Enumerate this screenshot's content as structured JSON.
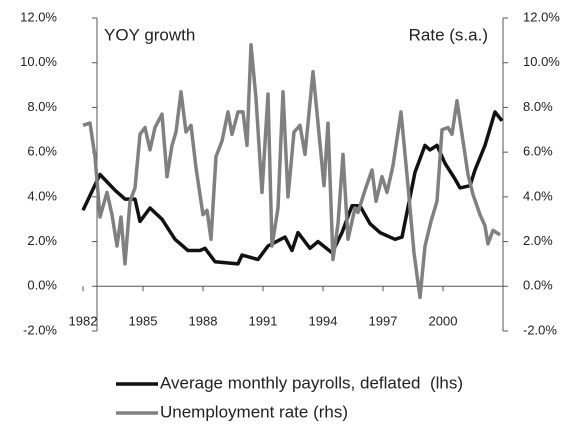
{
  "chart_data": {
    "type": "line",
    "annotations": [
      "YOY growth",
      "Rate (s.a.)"
    ],
    "xlim": [
      1982,
      2003
    ],
    "xticks": [
      1982,
      1985,
      1988,
      1991,
      1994,
      1997,
      2000
    ],
    "ylim": [
      -2,
      12
    ],
    "yticks": [
      {
        "value": -2,
        "label": "-2.0%"
      },
      {
        "value": 0,
        "label": "0.0%"
      },
      {
        "value": 2,
        "label": "2.0%"
      },
      {
        "value": 4,
        "label": "4.0%"
      },
      {
        "value": 6,
        "label": "6.0%"
      },
      {
        "value": 8,
        "label": "8.0%"
      },
      {
        "value": 10,
        "label": "10.0%"
      },
      {
        "value": 12,
        "label": "12.0%"
      }
    ],
    "y2lim": [
      -2,
      12
    ],
    "y2ticks": [
      {
        "value": -2,
        "label": "-2.0%"
      },
      {
        "value": 0,
        "label": "0.0%"
      },
      {
        "value": 2,
        "label": "2.0%"
      },
      {
        "value": 4,
        "label": "4.0%"
      },
      {
        "value": 6,
        "label": "6.0%"
      },
      {
        "value": 8,
        "label": "8.0%"
      },
      {
        "value": 10,
        "label": "10.0%"
      },
      {
        "value": 12,
        "label": "12.0%"
      }
    ],
    "series": [
      {
        "name": "Average monthly payrolls, deflated  (lhs)",
        "color": "#111111",
        "width": 3.5,
        "x": [
          1982.0,
          1982.85,
          1983.6,
          1984.1,
          1984.6,
          1984.85,
          1985.35,
          1985.95,
          1986.6,
          1987.25,
          1987.85,
          1988.1,
          1988.6,
          1989.75,
          1989.95,
          1990.75,
          1991.25,
          1992.1,
          1992.45,
          1992.75,
          1993.35,
          1993.75,
          1994.45,
          1994.95,
          1995.45,
          1995.85,
          1996.35,
          1996.85,
          1997.6,
          1997.95,
          1998.6,
          1999.1,
          1999.35,
          1999.7,
          2000.1,
          2000.6,
          2000.85,
          2001.35,
          2001.6,
          2002.1,
          2002.6,
          2002.95
        ],
        "values": [
          3.4,
          5.0,
          4.3,
          3.9,
          3.9,
          2.9,
          3.5,
          3.0,
          2.1,
          1.6,
          1.6,
          1.7,
          1.1,
          1.0,
          1.4,
          1.2,
          1.8,
          2.2,
          1.6,
          2.4,
          1.7,
          2.0,
          1.5,
          2.4,
          3.6,
          3.6,
          2.8,
          2.4,
          2.1,
          2.2,
          5.1,
          6.3,
          6.1,
          6.3,
          5.5,
          4.8,
          4.4,
          4.5,
          5.2,
          6.3,
          7.8,
          7.4
        ]
      },
      {
        "name": "Unemployment rate (rhs)",
        "color": "#808080",
        "width": 3.5,
        "axis": "y2",
        "x": [
          1982.0,
          1982.35,
          1982.6,
          1982.85,
          1983.2,
          1983.45,
          1983.7,
          1983.9,
          1984.1,
          1984.35,
          1984.6,
          1984.85,
          1985.1,
          1985.35,
          1985.6,
          1985.95,
          1986.2,
          1986.45,
          1986.65,
          1986.9,
          1987.15,
          1987.4,
          1987.65,
          1988.0,
          1988.2,
          1988.4,
          1988.65,
          1988.95,
          1989.25,
          1989.45,
          1989.75,
          1990.0,
          1990.2,
          1990.4,
          1990.65,
          1990.95,
          1991.25,
          1991.45,
          1991.75,
          1992.0,
          1992.25,
          1992.55,
          1992.85,
          1993.1,
          1993.5,
          1993.75,
          1994.05,
          1994.25,
          1994.5,
          1994.75,
          1995.0,
          1995.25,
          1995.6,
          1995.75,
          1996.1,
          1996.45,
          1996.65,
          1996.95,
          1997.2,
          1997.5,
          1997.9,
          1998.25,
          1998.55,
          1998.85,
          1999.1,
          1999.4,
          1999.7,
          1999.95,
          2000.25,
          2000.45,
          2000.7,
          2001.0,
          2001.25,
          2001.5,
          2001.85,
          2002.1,
          2002.25,
          2002.5,
          2002.85
        ],
        "values": [
          7.2,
          7.3,
          5.8,
          3.1,
          4.2,
          3.2,
          1.8,
          3.1,
          1.0,
          3.8,
          4.4,
          6.8,
          7.1,
          6.1,
          7.1,
          7.7,
          4.9,
          6.3,
          6.9,
          8.7,
          6.9,
          7.2,
          5.3,
          3.2,
          3.4,
          2.1,
          5.8,
          6.5,
          7.8,
          6.8,
          7.8,
          7.8,
          6.3,
          10.8,
          8.4,
          4.2,
          8.6,
          1.8,
          3.5,
          8.7,
          4.0,
          6.9,
          7.2,
          5.9,
          9.6,
          7.3,
          4.5,
          7.3,
          1.2,
          2.8,
          5.9,
          2.1,
          3.5,
          3.3,
          4.3,
          5.2,
          3.8,
          4.9,
          4.2,
          5.4,
          7.8,
          4.5,
          1.5,
          -0.5,
          1.8,
          2.9,
          3.8,
          7.0,
          7.1,
          6.8,
          8.3,
          6.5,
          5.0,
          4.1,
          3.2,
          2.7,
          1.9,
          2.5,
          2.3
        ]
      }
    ]
  }
}
